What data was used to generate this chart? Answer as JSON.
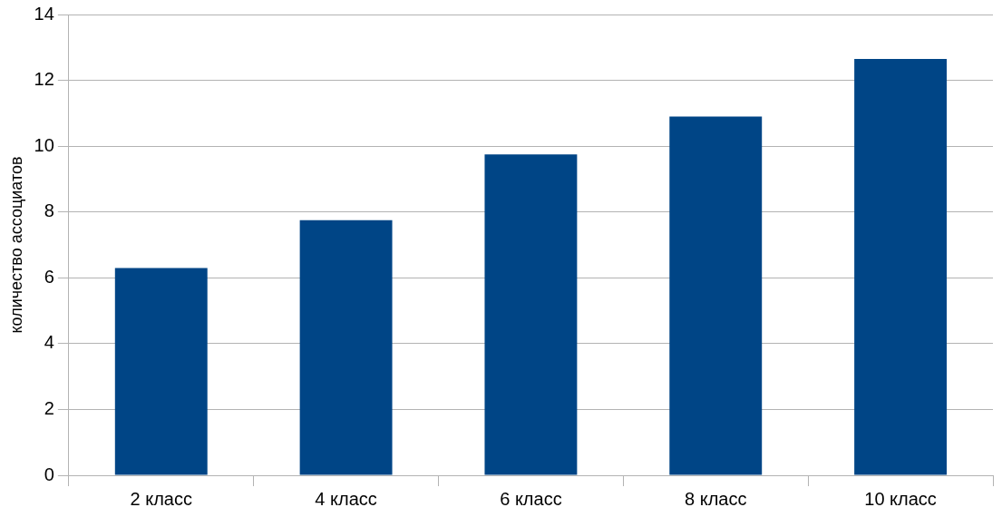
{
  "chart_data": {
    "type": "bar",
    "ylabel": "количество ассоциатов",
    "categories": [
      "2 класс",
      "4 класс",
      "6 класс",
      "8 класс",
      "10 класс"
    ],
    "values": [
      6.3,
      7.75,
      9.75,
      10.9,
      12.65
    ],
    "color": "#004586",
    "ylim": [
      0,
      14
    ],
    "yticks": [
      0,
      2,
      4,
      6,
      8,
      10,
      12,
      14
    ],
    "grid": "y",
    "legend": false
  }
}
